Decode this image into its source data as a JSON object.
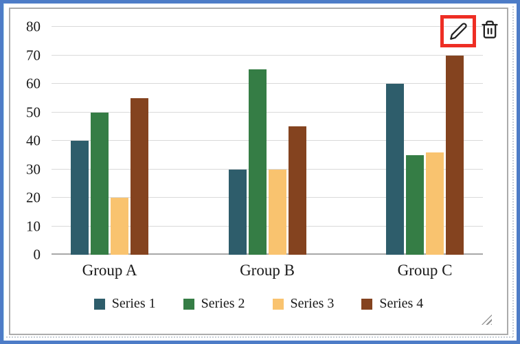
{
  "chart_data": {
    "type": "bar",
    "title": "",
    "categories": [
      "Group A",
      "Group B",
      "Group C"
    ],
    "series": [
      {
        "name": "Series 1",
        "color": "#2e5d6b",
        "values": [
          40,
          30,
          60
        ]
      },
      {
        "name": "Series 2",
        "color": "#357d45",
        "values": [
          50,
          65,
          35
        ]
      },
      {
        "name": "Series 3",
        "color": "#f9c36f",
        "values": [
          20,
          30,
          36
        ]
      },
      {
        "name": "Series 4",
        "color": "#84431f",
        "values": [
          55,
          45,
          70
        ]
      }
    ],
    "ylim": [
      0,
      80
    ],
    "yticks": [
      0,
      10,
      20,
      30,
      40,
      50,
      60,
      70,
      80
    ],
    "grid": true,
    "legend_position": "bottom"
  },
  "toolbar": {
    "icons": [
      {
        "name": "edit-pencil-icon",
        "highlighted": true
      },
      {
        "name": "trash-icon",
        "highlighted": false
      }
    ]
  },
  "colors": {
    "selection_border": "#4d7cc7",
    "widget_border": "#ababab",
    "gridline": "#d9d9d9",
    "axis_line": "#a8a8a8",
    "highlight_box": "#ee2e24"
  }
}
